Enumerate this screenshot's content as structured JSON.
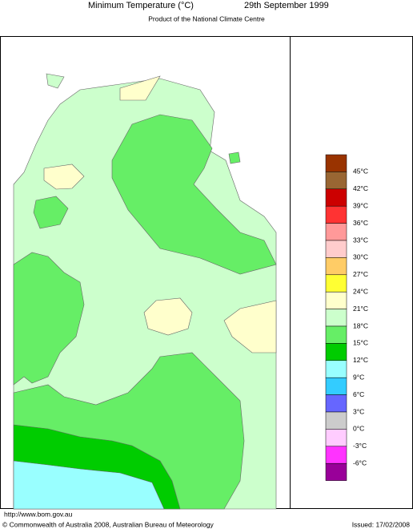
{
  "header": {
    "title": "Minimum Temperature (°C)",
    "date": "29th September 1999",
    "subtitle": "Product of the National Climate Centre"
  },
  "legend": {
    "labels": [
      "45°C",
      "42°C",
      "39°C",
      "36°C",
      "33°C",
      "30°C",
      "27°C",
      "24°C",
      "21°C",
      "18°C",
      "15°C",
      "12°C",
      "9°C",
      "6°C",
      "3°C",
      "0°C",
      "-3°C",
      "-6°C"
    ],
    "colors": [
      "#993300",
      "#996633",
      "#cc0000",
      "#ff3333",
      "#ff9999",
      "#ffcccc",
      "#ffcc66",
      "#ffff33",
      "#ffffcc",
      "#ccffcc",
      "#66ee66",
      "#00cc00",
      "#99ffff",
      "#33ccff",
      "#6666ff",
      "#cccccc",
      "#ffccff",
      "#ff33ff",
      "#990099"
    ]
  },
  "footer": {
    "url": "http://www.bom.gov.au",
    "copyright": "© Commonwealth of Australia 2008, Australian Bureau of Meteorology",
    "issued": "Issued: 17/02/2008"
  }
}
